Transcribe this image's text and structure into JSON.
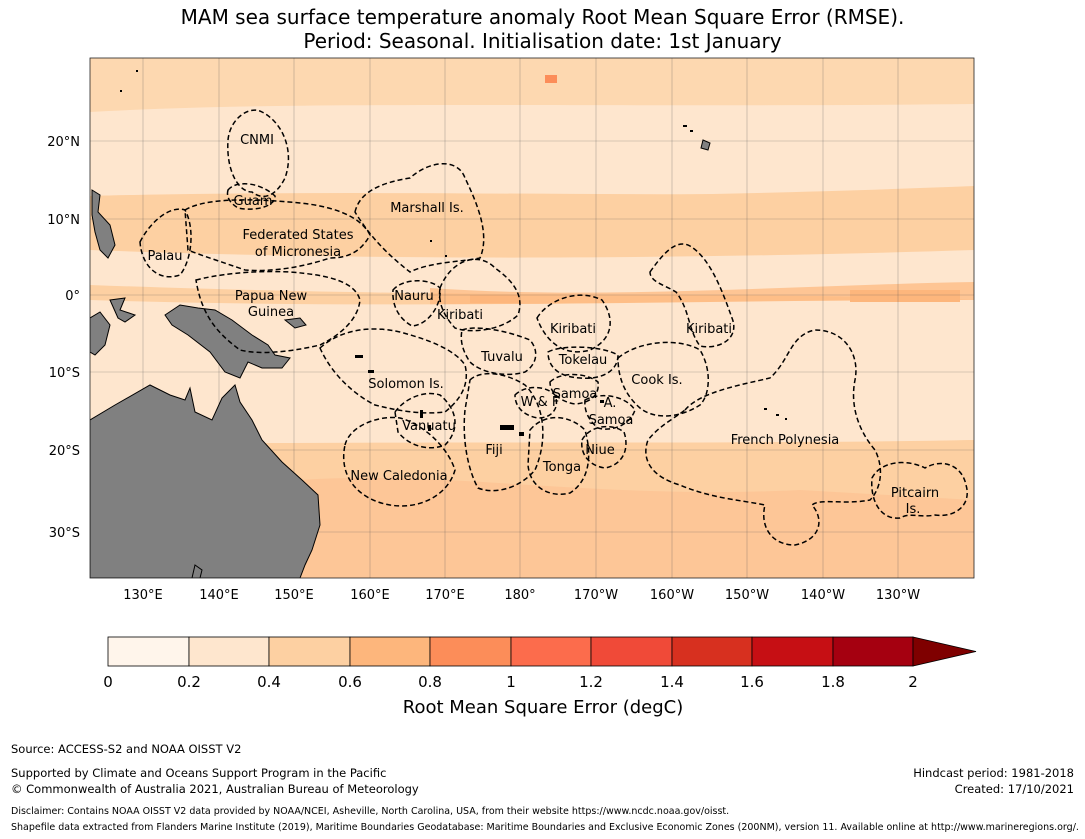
{
  "title": {
    "line1": "MAM sea surface temperature anomaly Root Mean Square Error (RMSE).",
    "line2": "Period: Seasonal. Initialisation date: 1st January"
  },
  "axes": {
    "lat_labels": [
      "20°N",
      "10°N",
      "0°",
      "10°S",
      "20°S",
      "30°S"
    ],
    "lon_labels": [
      "130°E",
      "140°E",
      "150°E",
      "160°E",
      "170°E",
      "180°",
      "170°W",
      "160°W",
      "150°W",
      "140°W",
      "130°W"
    ]
  },
  "regions": [
    {
      "name": "CNMI"
    },
    {
      "name": "Guam"
    },
    {
      "name": "Marshall Is."
    },
    {
      "name": "Palau"
    },
    {
      "name": "Federated States"
    },
    {
      "name": "of Micronesia"
    },
    {
      "name": "Papua New"
    },
    {
      "name": "Guinea"
    },
    {
      "name": "Nauru"
    },
    {
      "name": "Kiribati"
    },
    {
      "name": "Kiribati"
    },
    {
      "name": "Kiribati"
    },
    {
      "name": "Tuvalu"
    },
    {
      "name": "Tokelau"
    },
    {
      "name": "Solomon Is."
    },
    {
      "name": "Cook Is."
    },
    {
      "name": "Samoa"
    },
    {
      "name": "W & F"
    },
    {
      "name": "A."
    },
    {
      "name": "Samoa"
    },
    {
      "name": "Vanuatu"
    },
    {
      "name": "Fiji"
    },
    {
      "name": "Niue"
    },
    {
      "name": "French Polynesia"
    },
    {
      "name": "Tonga"
    },
    {
      "name": "New Caledonia"
    },
    {
      "name": "Pitcairn"
    },
    {
      "name": "Is."
    }
  ],
  "colorbar": {
    "label": "Root Mean Square Error (degC)",
    "ticks": [
      "0",
      "0.2",
      "0.4",
      "0.6",
      "0.8",
      "1",
      "1.2",
      "1.4",
      "1.6",
      "1.8",
      "2"
    ],
    "colors": [
      "#fff5eb",
      "#fee6ce",
      "#fdd0a2",
      "#fdb67c",
      "#fc8d59",
      "#fc6c4c",
      "#f04a38",
      "#d7301f",
      "#c60f14",
      "#a50010",
      "#7f0000"
    ],
    "range": [
      0,
      2
    ],
    "extend": "max"
  },
  "footer": {
    "source": "Source: ACCESS-S2 and NOAA OISST V2",
    "support": "Supported by Climate and Oceans Support Program in the Pacific",
    "copyright": "© Commonwealth of Australia 2021, Australian Bureau of Meteorology",
    "hindcast": "Hindcast period: 1981-2018",
    "created": "Created: 17/10/2021",
    "disclaimer": "Disclaimer: Contains NOAA OISST V2 data provided by NOAA/NCEI, Asheville, North Carolina, USA, from their website https://www.ncdc.noaa.gov/oisst.",
    "shapefile": "Shapefile data extracted from Flanders Marine Institute (2019), Maritime Boundaries Geodatabase: Maritime Boundaries and Exclusive Economic Zones (200NM), version 11. Available online at http://www.marineregions.org/."
  },
  "land_color": "#808080"
}
